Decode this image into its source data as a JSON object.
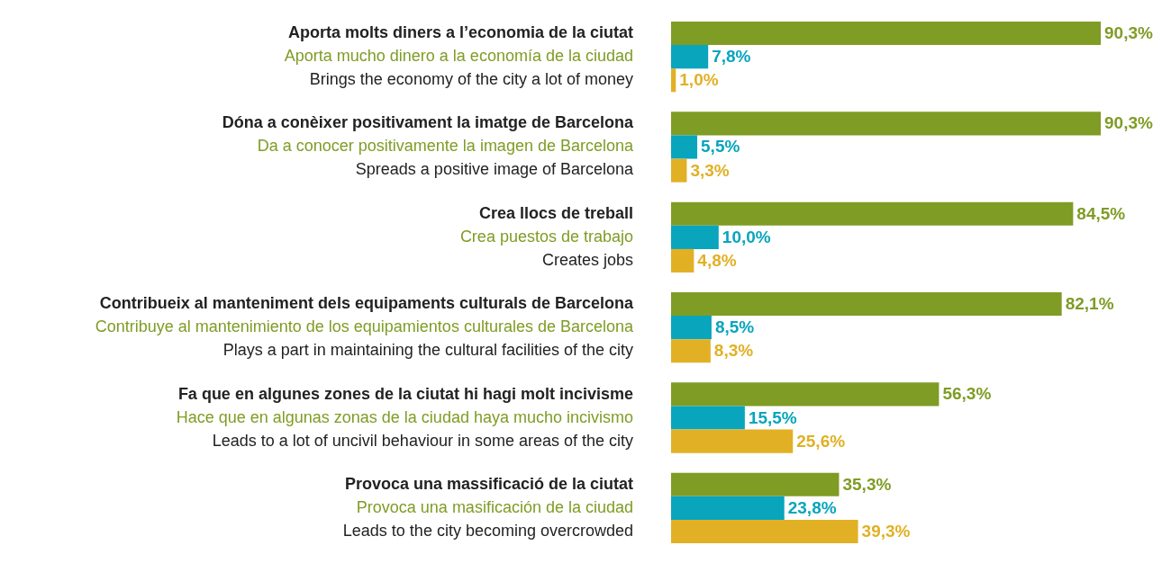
{
  "chart_data": {
    "type": "bar",
    "orientation": "horizontal",
    "categories": [
      "Aporta molts diners a l’economia de la ciutat\nAporta mucho dinero a la economía de la ciudad\nBrings the economy of the city a lot of money",
      "Dóna a conèixer positivament la imatge de Barcelona\nDa a conocer positivamente la imagen de Barcelona\nSpreads a positive image of Barcelona",
      "Crea llocs de treball\nCrea puestos de trabajo\nCreates jobs",
      "Contribueix al manteniment dels equipaments culturals de Barcelona\nContribuye al mantenimiento de los equipamientos culturales de Barcelona\nPlays a part in maintaining the cultural facilities of the city",
      "Fa que en algunes zones de la ciutat hi hagi molt incivisme\nHace que en algunas zonas de la ciudad haya mucho incivismo\nLeads to a lot of uncivil behaviour in some areas of the city",
      "Provoca una massificació de la ciutat\nProvoca una masificación de la ciudad\nLeads to the city becoming overcrowded"
    ],
    "series": [
      {
        "color": "#7f9c25",
        "values": [
          90.3,
          90.3,
          84.5,
          82.1,
          56.3,
          35.3
        ],
        "value_labels": [
          "90,3%",
          "90,3%",
          "84,5%",
          "82,1%",
          "56,3%",
          "35,3%"
        ]
      },
      {
        "color": "#08a5bd",
        "values": [
          7.8,
          5.5,
          10.0,
          8.5,
          15.5,
          23.8
        ],
        "value_labels": [
          "7,8%",
          "5,5%",
          "10,0%",
          "8,5%",
          "15,5%",
          "23,8%"
        ]
      },
      {
        "color": "#e1b024",
        "values": [
          1.0,
          3.3,
          4.8,
          8.3,
          25.6,
          39.3
        ],
        "value_labels": [
          "1,0%",
          "3,3%",
          "4,8%",
          "8,3%",
          "25,6%",
          "39,3%"
        ]
      }
    ]
  }
}
